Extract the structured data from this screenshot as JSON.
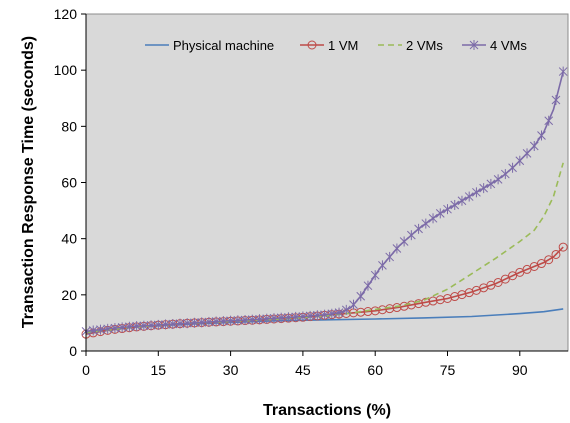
{
  "chart_data": {
    "type": "line",
    "xlabel": "Transactions (%)",
    "ylabel": "Transaction Response Time (seconds)",
    "xlim": [
      0,
      100
    ],
    "ylim": [
      0,
      120
    ],
    "x_ticks": [
      0,
      15,
      30,
      45,
      60,
      75,
      90
    ],
    "y_ticks": [
      0,
      20,
      40,
      60,
      80,
      100,
      120
    ],
    "grid": false,
    "legend_position": "top",
    "plot_background": "#d9d9d9",
    "series": [
      {
        "name": "Physical machine",
        "color": "#4a7ebb",
        "marker": "none",
        "dash": "solid",
        "x": [
          0,
          10,
          20,
          30,
          40,
          50,
          60,
          70,
          80,
          90,
          95,
          99
        ],
        "y": [
          6.5,
          8.5,
          9.5,
          10.2,
          10.8,
          11.1,
          11.4,
          11.8,
          12.3,
          13.3,
          14.0,
          15.0
        ]
      },
      {
        "name": "1 VM",
        "color": "#be4b48",
        "marker": "circle",
        "dash": "solid",
        "x": [
          0,
          5,
          10,
          15,
          20,
          25,
          30,
          35,
          40,
          45,
          50,
          55,
          60,
          65,
          70,
          75,
          80,
          85,
          90,
          95,
          97,
          99
        ],
        "y": [
          6.0,
          7.5,
          8.5,
          9.2,
          9.8,
          10.2,
          10.6,
          11.0,
          11.5,
          12.0,
          12.8,
          13.5,
          14.3,
          15.6,
          17.2,
          18.7,
          21.0,
          24.0,
          28.0,
          31.5,
          33.5,
          37.0
        ]
      },
      {
        "name": "2 VMs",
        "color": "#9bbb59",
        "marker": "none",
        "dash": "dashed",
        "x": [
          0,
          10,
          20,
          30,
          40,
          50,
          55,
          60,
          65,
          70,
          75,
          80,
          85,
          90,
          93,
          95,
          97,
          99
        ],
        "y": [
          6.5,
          8.5,
          9.8,
          10.5,
          11.3,
          12.5,
          13.5,
          14.8,
          16.0,
          18.0,
          22.0,
          27.5,
          33.0,
          39.0,
          43.0,
          48.0,
          55.0,
          67.0
        ]
      },
      {
        "name": "4 VMs",
        "color": "#7c6ba8",
        "marker": "x-star",
        "dash": "solid",
        "x": [
          0,
          5,
          10,
          15,
          20,
          25,
          30,
          35,
          40,
          45,
          50,
          53,
          55,
          57,
          59,
          61,
          63,
          65,
          67,
          69,
          71,
          73,
          75,
          77,
          79,
          81,
          83,
          85,
          87,
          89,
          91,
          93,
          95,
          97,
          99
        ],
        "y": [
          7.0,
          8.0,
          8.8,
          9.3,
          9.8,
          10.3,
          10.8,
          11.2,
          11.8,
          12.3,
          13.0,
          13.8,
          15.5,
          19.5,
          24.5,
          29.5,
          33.5,
          37.5,
          40.5,
          43.5,
          46.0,
          48.5,
          50.5,
          52.5,
          54.5,
          56.5,
          58.5,
          60.5,
          63.0,
          66.0,
          69.5,
          73.0,
          78.0,
          86.0,
          99.5
        ]
      }
    ]
  }
}
